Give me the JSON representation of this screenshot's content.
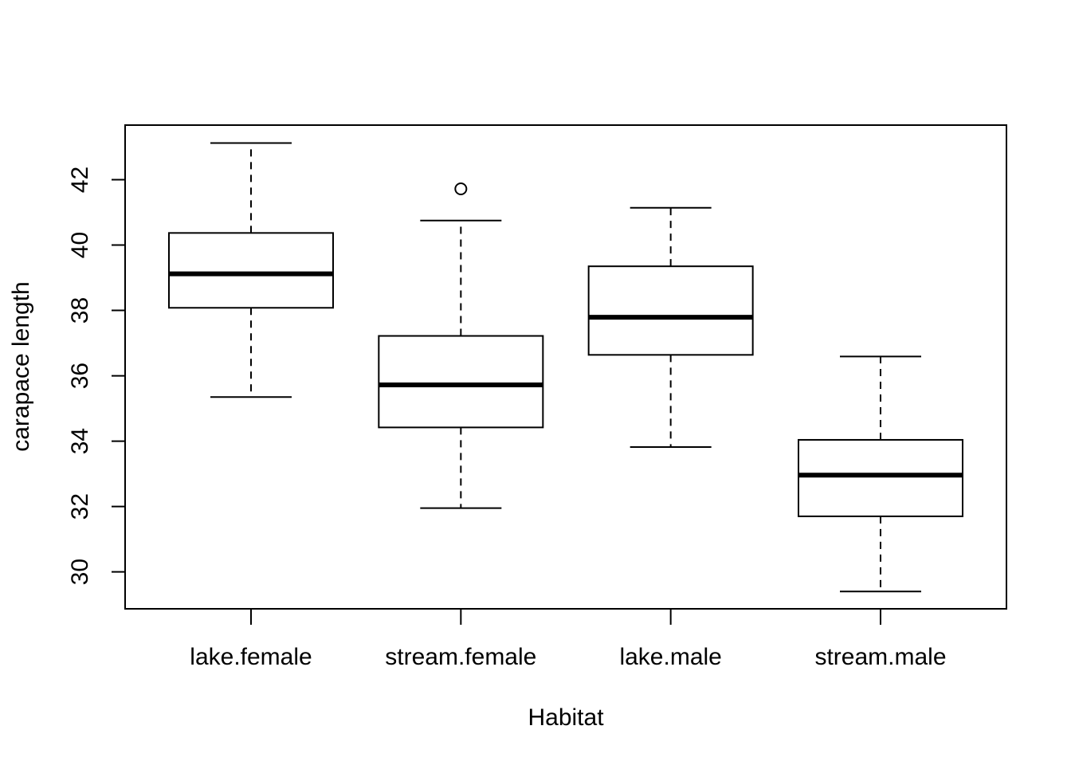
{
  "chart_data": {
    "type": "box",
    "xlabel": "Habitat",
    "ylabel": "carapace length",
    "ylim": [
      28.87,
      43.67
    ],
    "yticks": [
      30,
      32,
      34,
      36,
      38,
      40,
      42
    ],
    "grid": false,
    "categories": [
      "lake.female",
      "stream.female",
      "lake.male",
      "stream.male"
    ],
    "boxes": [
      {
        "category": "lake.female",
        "whisker_low": 35.35,
        "q1": 38.08,
        "median": 39.12,
        "q3": 40.37,
        "whisker_high": 43.12,
        "outliers": []
      },
      {
        "category": "stream.female",
        "whisker_low": 31.95,
        "q1": 34.42,
        "median": 35.72,
        "q3": 37.22,
        "whisker_high": 40.75,
        "outliers": [
          41.72
        ]
      },
      {
        "category": "lake.male",
        "whisker_low": 33.82,
        "q1": 36.64,
        "median": 37.79,
        "q3": 39.35,
        "whisker_high": 41.14,
        "outliers": []
      },
      {
        "category": "stream.male",
        "whisker_low": 29.4,
        "q1": 31.7,
        "median": 32.96,
        "q3": 34.04,
        "whisker_high": 36.59,
        "outliers": []
      }
    ]
  }
}
